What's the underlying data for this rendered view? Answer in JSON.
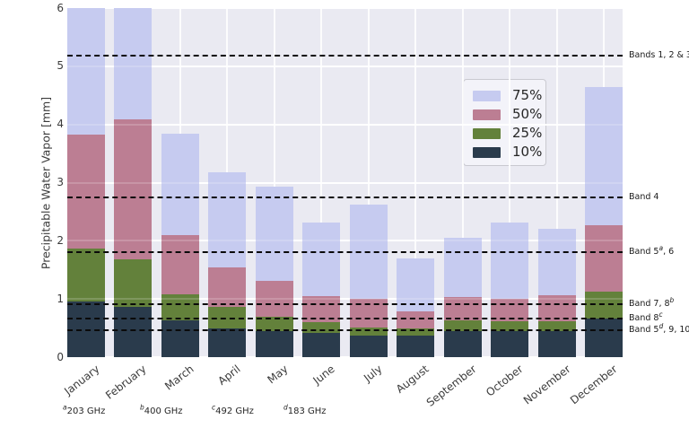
{
  "chart_data": {
    "type": "bar",
    "title": "",
    "xlabel": "",
    "ylabel": "Precipitable Water Vapor [mm]",
    "ylim": [
      0,
      6
    ],
    "yticks": [
      0,
      1,
      2,
      3,
      4,
      5,
      6
    ],
    "grid": true,
    "plot_background": "#eaeaf2",
    "gridline_color": "#ffffff",
    "categories": [
      "January",
      "February",
      "March",
      "April",
      "May",
      "June",
      "July",
      "August",
      "September",
      "October",
      "November",
      "December"
    ],
    "series": [
      {
        "name": "75%",
        "color": "#c6cbf0",
        "values": [
          6.0,
          6.0,
          3.84,
          3.17,
          2.93,
          2.32,
          2.62,
          1.7,
          2.05,
          2.32,
          2.2,
          4.64
        ]
      },
      {
        "name": "50%",
        "color": "#bc7e93",
        "values": [
          3.82,
          4.08,
          2.1,
          1.55,
          1.31,
          1.05,
          1.0,
          0.79,
          1.04,
          1.01,
          1.07,
          2.27
        ]
      },
      {
        "name": "25%",
        "color": "#63813b",
        "values": [
          1.87,
          1.68,
          1.08,
          0.87,
          0.69,
          0.6,
          0.51,
          0.49,
          0.63,
          0.61,
          0.62,
          1.12
        ]
      },
      {
        "name": "10%",
        "color": "#2a3b4c",
        "values": [
          0.95,
          0.86,
          0.63,
          0.5,
          0.45,
          0.41,
          0.37,
          0.37,
          0.45,
          0.44,
          0.45,
          0.67
        ]
      }
    ],
    "notes": "Bars are overlaid percentile bars (75% behind, 10% in front). January and February 75% bars are clipped at the axis maximum of 6 mm.",
    "legend": {
      "position": "upper center-right",
      "entries": [
        "75%",
        "50%",
        "25%",
        "10%"
      ]
    },
    "band_lines": [
      {
        "value": 5.19,
        "parts": [
          {
            "t": "Bands 1, 2 & 3"
          }
        ]
      },
      {
        "value": 2.75,
        "parts": [
          {
            "t": "Band 4"
          }
        ]
      },
      {
        "value": 1.8,
        "parts": [
          {
            "t": "Band 5"
          },
          {
            "t": "a",
            "sup": true
          },
          {
            "t": ", 6"
          }
        ]
      },
      {
        "value": 0.91,
        "parts": [
          {
            "t": "Band 7, 8"
          },
          {
            "t": "b",
            "sup": true
          }
        ]
      },
      {
        "value": 0.66,
        "parts": [
          {
            "t": "Band 8"
          },
          {
            "t": "c",
            "sup": true
          }
        ]
      },
      {
        "value": 0.47,
        "parts": [
          {
            "t": "Band 5"
          },
          {
            "t": "d",
            "sup": true
          },
          {
            "t": ", 9, 10"
          }
        ]
      }
    ],
    "footnotes": [
      {
        "sup": "a",
        "text": "203 GHz"
      },
      {
        "sup": "b",
        "text": "400 GHz"
      },
      {
        "sup": "c",
        "text": "492 GHz"
      },
      {
        "sup": "d",
        "text": "183 GHz"
      }
    ],
    "line_style": "black dashed horizontal lines spanning plot width"
  }
}
